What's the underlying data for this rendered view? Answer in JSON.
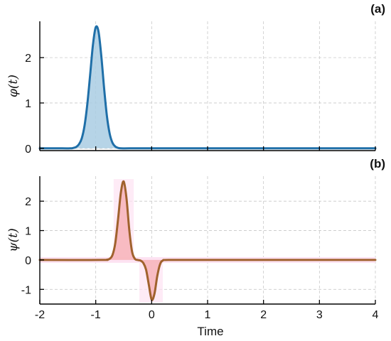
{
  "chart_data": [
    {
      "type": "area",
      "panel_label": "(a)",
      "ylabel": "φ(t)",
      "xlabel": "",
      "xlim": [
        -2.0,
        4.0
      ],
      "ylim": [
        -0.05,
        2.8
      ],
      "xticks": [
        -2,
        -1,
        0,
        1,
        2,
        3,
        4
      ],
      "yticks": [
        0,
        1,
        2
      ],
      "ytick_labels": [
        "0",
        "1",
        "2"
      ],
      "show_xtick_labels": false,
      "grid": true,
      "line_color": "#1f6fa8",
      "fill_color": "#a9cce3",
      "series": [
        {
          "x": [
            -2.0,
            -1.6,
            -1.45,
            -1.4,
            -1.35,
            -1.3,
            -1.25,
            -1.2,
            -1.15,
            -1.1,
            -1.05,
            -1.0,
            -0.95,
            -0.9,
            -0.85,
            -0.8,
            -0.75,
            -0.7,
            -0.65,
            -0.6,
            -0.55,
            -0.4,
            0.0,
            1.0,
            2.0,
            3.0,
            4.0
          ],
          "values": [
            0.0,
            0.0,
            0.0,
            0.01,
            0.03,
            0.09,
            0.22,
            0.5,
            0.98,
            1.62,
            2.28,
            2.67,
            2.57,
            2.03,
            1.32,
            0.71,
            0.32,
            0.12,
            0.04,
            0.01,
            0.0,
            0.0,
            0.0,
            0.0,
            0.0,
            0.0,
            0.0
          ]
        }
      ]
    },
    {
      "type": "area",
      "panel_label": "(b)",
      "ylabel": "ψ(t)",
      "xlabel": "Time",
      "xlim": [
        -2.0,
        4.0
      ],
      "ylim": [
        -1.5,
        2.85
      ],
      "xticks": [
        -2,
        -1,
        0,
        1,
        2,
        3,
        4
      ],
      "xtick_labels": [
        "-2",
        "-1",
        "0",
        "1",
        "2",
        "3",
        "4"
      ],
      "yticks": [
        -1,
        0,
        1,
        2
      ],
      "ytick_labels": [
        "-1",
        "0",
        "1",
        "2"
      ],
      "show_xtick_labels": true,
      "grid": true,
      "line_color": "#a0622d",
      "fill_color": "#f7b3b8",
      "glow_color": "#fde2f2",
      "series": [
        {
          "x": [
            -2.0,
            -0.9,
            -0.8,
            -0.75,
            -0.7,
            -0.65,
            -0.6,
            -0.55,
            -0.5,
            -0.45,
            -0.4,
            -0.35,
            -0.3,
            -0.25,
            -0.2,
            -0.15,
            -0.1,
            -0.05,
            0.0,
            0.05,
            0.1,
            0.15,
            0.2,
            0.3,
            1.0,
            2.0,
            3.0,
            4.0
          ],
          "values": [
            0.0,
            0.0,
            0.01,
            0.04,
            0.17,
            0.58,
            1.4,
            2.3,
            2.67,
            2.1,
            1.02,
            0.28,
            0.04,
            0.0,
            -0.02,
            -0.1,
            -0.33,
            -0.85,
            -1.35,
            -1.15,
            -0.55,
            -0.15,
            -0.02,
            0.0,
            0.0,
            0.0,
            0.0,
            0.0
          ]
        }
      ]
    }
  ]
}
